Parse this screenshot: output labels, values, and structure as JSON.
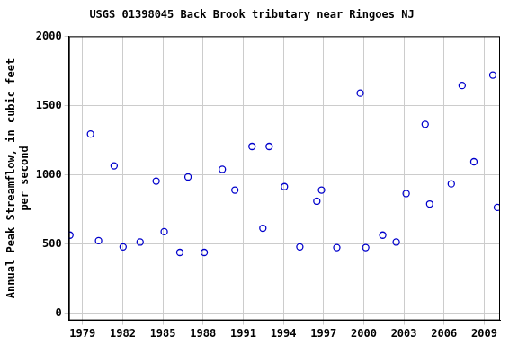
{
  "chart_data": {
    "type": "scatter",
    "title": "USGS 01398045 Back Brook tributary near Ringoes NJ",
    "y_label": [
      "Annual Peak Streamflow, in cubic feet",
      "per second"
    ],
    "x": [
      1978.06,
      1979.6,
      1980.2,
      1981.36,
      1982.03,
      1983.3,
      1984.5,
      1985.1,
      1986.27,
      1986.88,
      1988.09,
      1989.44,
      1990.38,
      1991.66,
      1992.47,
      1992.94,
      1994.08,
      1995.23,
      1996.5,
      1996.85,
      1997.99,
      1999.74,
      2000.15,
      2001.42,
      2002.43,
      2003.17,
      2004.59,
      2004.93,
      2006.54,
      2007.35,
      2008.23,
      2009.64,
      2009.98
    ],
    "values": [
      565,
      1295,
      525,
      1065,
      480,
      515,
      955,
      590,
      440,
      985,
      440,
      1040,
      890,
      1205,
      615,
      1205,
      915,
      480,
      810,
      890,
      475,
      1590,
      475,
      565,
      515,
      865,
      1365,
      790,
      935,
      1645,
      1095,
      1720,
      765
    ],
    "color": "#0000cc",
    "marker": "open_circle",
    "xlim": [
      1977.99,
      2010.18
    ],
    "xticks": [
      1979,
      1982,
      1985,
      1988,
      1991,
      1994,
      1997,
      2000,
      2003,
      2006,
      2009
    ],
    "ylim": [
      -50,
      2000
    ],
    "yticks": [
      0,
      500,
      1000,
      1500,
      2000
    ],
    "grid": true
  }
}
